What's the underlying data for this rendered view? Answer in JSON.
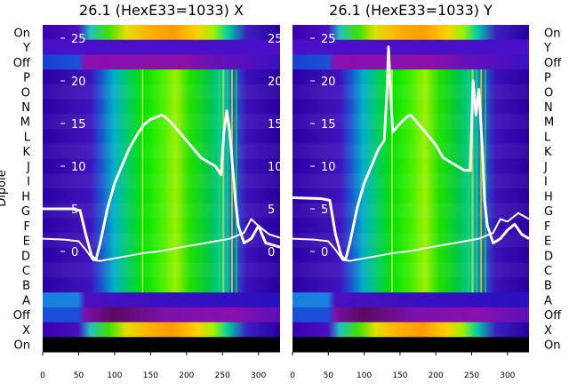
{
  "chart_data": [
    {
      "type": "heatmap",
      "title": "26.1 (HexE33=1033) X",
      "ylabel": "Dipole",
      "xlim": [
        0,
        330
      ],
      "xticks": [
        0,
        50,
        100,
        150,
        200,
        250,
        300
      ],
      "inner_yticks": [
        0,
        5,
        10,
        15,
        20,
        25
      ],
      "row_labels": [
        "On",
        "Y",
        "Off",
        "P",
        "O",
        "N",
        "M",
        "L",
        "K",
        "J",
        "I",
        "H",
        "G",
        "F",
        "E",
        "D",
        "C",
        "B",
        "A",
        "Off",
        "X",
        "On"
      ],
      "overlay_lines": [
        {
          "x": [
            0,
            40,
            52,
            60,
            68,
            74,
            80,
            90,
            100,
            110,
            120,
            130,
            140,
            150,
            160,
            165,
            170,
            180,
            190,
            200,
            210,
            220,
            230,
            240,
            248,
            252,
            256,
            260,
            265,
            268,
            272,
            280,
            290,
            300,
            310,
            330
          ],
          "y": [
            5,
            5,
            4.8,
            2,
            -0.5,
            -1,
            1,
            5,
            8,
            10,
            12,
            13.5,
            14.8,
            15.5,
            15.8,
            16,
            15.8,
            15,
            14,
            13,
            12,
            11,
            10.5,
            10,
            9,
            14,
            16.5,
            14,
            9,
            6,
            3,
            1,
            1.5,
            3,
            1,
            0.5
          ]
        },
        {
          "x": [
            0,
            30,
            50,
            60,
            70,
            80,
            100,
            120,
            140,
            160,
            180,
            200,
            220,
            240,
            260,
            280,
            290,
            300,
            315,
            330
          ],
          "y": [
            1.5,
            1.4,
            1.2,
            0.2,
            -1,
            -1.1,
            -0.8,
            -0.5,
            -0.2,
            0,
            0.3,
            0.6,
            0.9,
            1.2,
            1.5,
            2.2,
            3.8,
            3,
            2,
            1.6
          ]
        }
      ]
    },
    {
      "type": "heatmap",
      "title": "26.1 (HexE33=1033) Y",
      "xlim": [
        0,
        330
      ],
      "xticks": [
        0,
        50,
        100,
        150,
        200,
        250,
        300
      ],
      "inner_yticks": [
        0,
        5,
        10,
        15,
        20,
        25
      ],
      "row_labels": [
        "On",
        "Y",
        "Off",
        "P",
        "O",
        "N",
        "M",
        "L",
        "K",
        "J",
        "I",
        "H",
        "G",
        "F",
        "E",
        "D",
        "C",
        "B",
        "A",
        "Off",
        "X",
        "On"
      ],
      "overlay_lines": [
        {
          "x": [
            0,
            40,
            52,
            60,
            68,
            74,
            80,
            90,
            100,
            110,
            120,
            128,
            132,
            134,
            136,
            140,
            150,
            160,
            165,
            170,
            180,
            190,
            200,
            210,
            220,
            230,
            240,
            248,
            252,
            256,
            260,
            265,
            268,
            272,
            280,
            290,
            300,
            310,
            320,
            330
          ],
          "y": [
            6.3,
            6.2,
            6,
            2,
            -0.5,
            -1,
            1,
            5,
            8,
            10,
            12,
            13,
            19,
            24,
            20,
            14,
            15,
            15.8,
            16,
            15.5,
            14.5,
            13.5,
            12.5,
            11,
            10.5,
            10,
            9.5,
            9.5,
            20,
            16,
            19,
            12,
            6,
            3,
            1,
            1.5,
            2.5,
            3.2,
            2,
            1.5
          ]
        },
        {
          "x": [
            0,
            30,
            50,
            60,
            70,
            80,
            100,
            120,
            140,
            160,
            180,
            200,
            220,
            240,
            260,
            280,
            290,
            300,
            315,
            330
          ],
          "y": [
            1.5,
            1.4,
            1.2,
            0.2,
            -1,
            -1.1,
            -0.8,
            -0.5,
            -0.2,
            0,
            0.3,
            0.6,
            0.9,
            1.2,
            1.5,
            2.2,
            3.8,
            3.5,
            4.5,
            3.8
          ]
        }
      ]
    }
  ]
}
